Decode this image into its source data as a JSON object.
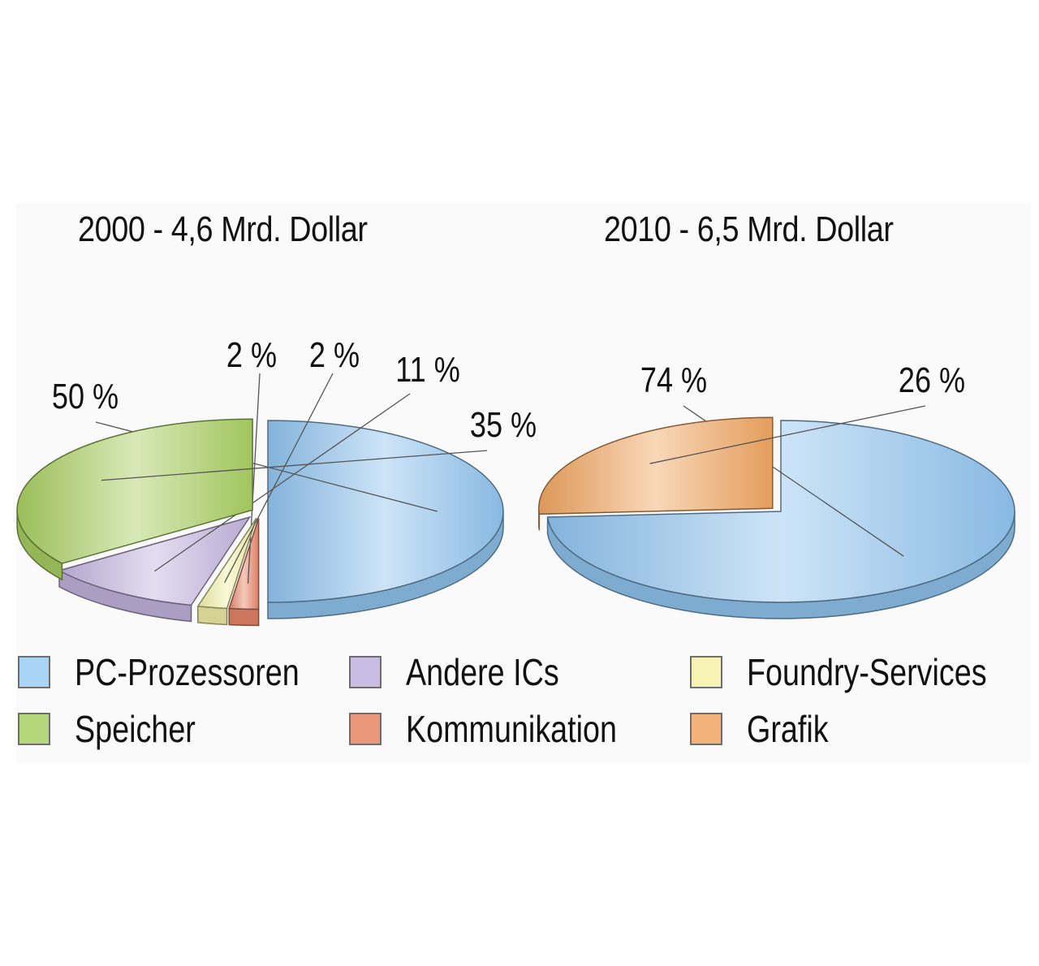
{
  "chart_data": [
    {
      "type": "pie",
      "title": "2000 - 4,6 Mrd. Dollar",
      "slices": [
        {
          "label": "PC-Prozessoren",
          "value": 50,
          "value_label": "50 %",
          "color": "#8fc3ee"
        },
        {
          "label": "Kommunikation",
          "value": 2,
          "value_label": "2 %",
          "color": "#e8866b"
        },
        {
          "label": "Foundry-Services",
          "value": 2,
          "value_label": "2 %",
          "color": "#f2f0a8"
        },
        {
          "label": "Andere ICs",
          "value": 11,
          "value_label": "11 %",
          "color": "#c3b3de"
        },
        {
          "label": "Speicher",
          "value": 35,
          "value_label": "35 %",
          "color": "#a8cf62"
        }
      ]
    },
    {
      "type": "pie",
      "title": "2010 - 6,5 Mrd. Dollar",
      "slices": [
        {
          "label": "PC-Prozessoren",
          "value": 74,
          "value_label": "74 %",
          "color": "#8fc3ee"
        },
        {
          "label": "Grafik",
          "value": 26,
          "value_label": "26 %",
          "color": "#f0a561"
        }
      ]
    }
  ],
  "legend": [
    {
      "label": "PC-Prozessoren",
      "color": "#a9d4f5"
    },
    {
      "label": "Andere ICs",
      "color": "#c9bde3"
    },
    {
      "label": "Foundry-Services",
      "color": "#f6f3b4"
    },
    {
      "label": "Speicher",
      "color": "#b3d77a"
    },
    {
      "label": "Kommunikation",
      "color": "#ea977c"
    },
    {
      "label": "Grafik",
      "color": "#f3b27a"
    }
  ]
}
